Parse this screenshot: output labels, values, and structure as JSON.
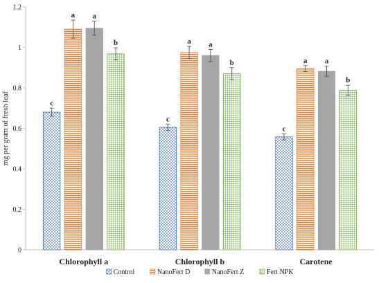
{
  "chart_data": {
    "type": "bar",
    "title": "",
    "xlabel": "",
    "ylabel": "mg per gram of fresh leaf",
    "ylim": [
      0,
      1.2
    ],
    "yticks": [
      "0",
      "0.2",
      "0.4",
      "0.6",
      "0.8",
      "1",
      "1.2"
    ],
    "categories": [
      "Chlorophyll a",
      "Chlorophyll b",
      "Carotene"
    ],
    "grid": false,
    "legend_position": "bottom",
    "series": [
      {
        "name": "Control",
        "pattern": "dots",
        "color": "#4472c4",
        "values": [
          0.68,
          0.605,
          0.558
        ],
        "errors": [
          0.02,
          0.015,
          0.015
        ],
        "letters": [
          "c",
          "c",
          "c"
        ]
      },
      {
        "name": "NanoFert D",
        "pattern": "hstripes",
        "color": "#ed7d31",
        "values": [
          1.09,
          0.975,
          0.895
        ],
        "errors": [
          0.045,
          0.03,
          0.015
        ],
        "letters": [
          "a",
          "a",
          "a"
        ]
      },
      {
        "name": "NanoFert Z",
        "pattern": "solid",
        "color": "#a5a5a5",
        "values": [
          1.095,
          0.96,
          0.882
        ],
        "errors": [
          0.035,
          0.03,
          0.025
        ],
        "letters": [
          "a",
          "a",
          "a"
        ]
      },
      {
        "name": "Fert NPK",
        "pattern": "green-dots",
        "color": "#70ad47",
        "values": [
          0.968,
          0.87,
          0.788
        ],
        "errors": [
          0.03,
          0.03,
          0.025
        ],
        "letters": [
          "b",
          "b",
          "b"
        ]
      }
    ]
  }
}
